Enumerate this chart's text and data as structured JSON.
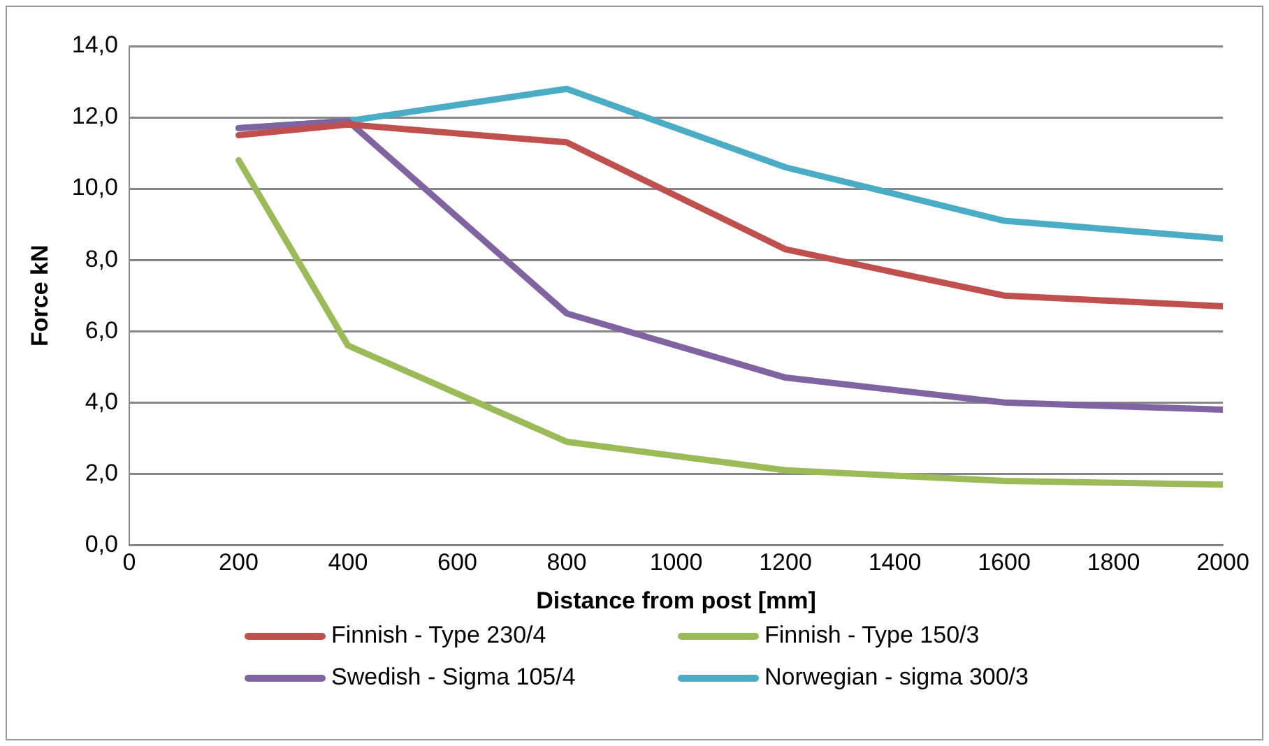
{
  "chart_data": {
    "type": "line",
    "xlabel": "Distance from post [mm]",
    "ylabel": "Force kN",
    "x": [
      200,
      400,
      800,
      1200,
      1600,
      2000
    ],
    "series": [
      {
        "name": "Finnish - Type 230/4",
        "color": "#c0504d",
        "values": [
          11.5,
          11.8,
          11.3,
          8.3,
          7.0,
          6.7
        ]
      },
      {
        "name": "Finnish - Type 150/3",
        "color": "#9bbb59",
        "values": [
          10.8,
          5.6,
          2.9,
          2.1,
          1.8,
          1.7
        ]
      },
      {
        "name": "Swedish - Sigma 105/4",
        "color": "#8064a2",
        "values": [
          11.7,
          11.9,
          6.5,
          4.7,
          4.0,
          3.8
        ]
      },
      {
        "name": "Norwegian - sigma 300/3",
        "color": "#4bacc6",
        "values": [
          11.7,
          11.9,
          12.8,
          10.6,
          9.1,
          8.6
        ]
      }
    ],
    "xlim": [
      0,
      2000
    ],
    "xticks": [
      0,
      200,
      400,
      600,
      800,
      1000,
      1200,
      1400,
      1600,
      1800,
      2000
    ],
    "ylim": [
      0,
      14
    ],
    "yticks": [
      {
        "value": 0,
        "label": "0,0"
      },
      {
        "value": 2,
        "label": "2,0"
      },
      {
        "value": 4,
        "label": "4,0"
      },
      {
        "value": 6,
        "label": "6,0"
      },
      {
        "value": 8,
        "label": "8,0"
      },
      {
        "value": 10,
        "label": "10,0"
      },
      {
        "value": 12,
        "label": "12,0"
      },
      {
        "value": 14,
        "label": "14,0"
      }
    ],
    "grid": "y",
    "legend": "bottom",
    "marker": "none",
    "line_style": "solid"
  }
}
